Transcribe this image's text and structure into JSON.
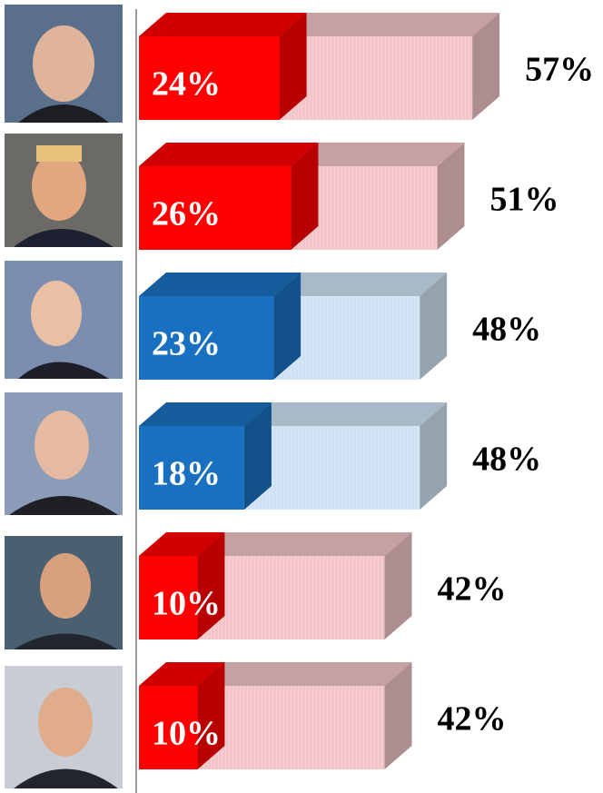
{
  "chart_data": {
    "type": "bar3d-overlap",
    "series": [
      {
        "values": [
          57,
          51,
          48,
          48,
          42,
          42
        ],
        "value_labels": [
          "57%",
          "51%",
          "48%",
          "48%",
          "42%",
          "42%"
        ],
        "colors": [
          "#f2c4c8",
          "#f2c4c8",
          "#cfe2f3",
          "#cfe2f3",
          "#f2c4c8",
          "#f2c4c8"
        ]
      },
      {
        "values": [
          24,
          26,
          23,
          18,
          10,
          10
        ],
        "value_labels": [
          "24%",
          "26%",
          "23%",
          "18%",
          "10%",
          "10%"
        ],
        "colors": [
          "#ff0000",
          "#ff0000",
          "#1a70c0",
          "#1a70c0",
          "#ff0000",
          "#ff0000"
        ]
      }
    ]
  }
}
